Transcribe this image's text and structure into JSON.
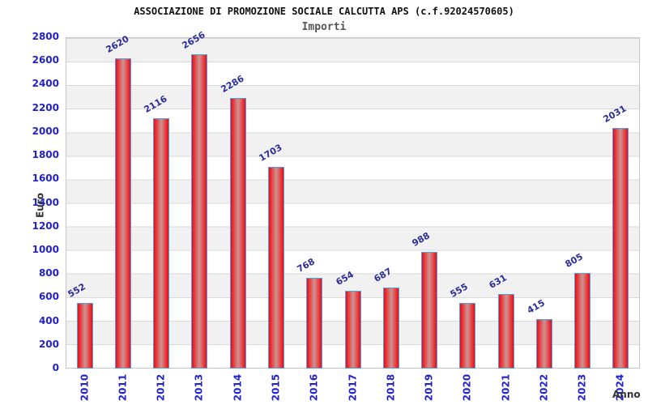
{
  "header": {
    "title": "ASSOCIAZIONE DI PROMOZIONE SOCIALE CALCUTTA APS (c.f.92024570605)",
    "subtitle": "Importi"
  },
  "chart_data": {
    "type": "bar",
    "title": "ASSOCIAZIONE DI PROMOZIONE SOCIALE CALCUTTA APS (c.f.92024570605)",
    "subtitle": "Importi",
    "xlabel": "Anno",
    "ylabel": "Euro",
    "categories": [
      "2010",
      "2011",
      "2012",
      "2013",
      "2014",
      "2015",
      "2016",
      "2017",
      "2018",
      "2019",
      "2020",
      "2021",
      "2022",
      "2023",
      "2024"
    ],
    "values": [
      552,
      2620,
      2116,
      2656,
      2286,
      1703,
      768,
      654,
      687,
      988,
      555,
      631,
      415,
      805,
      2031
    ],
    "ylim": [
      0,
      2800
    ],
    "ytick_step": 200,
    "grid": "horizontal-bands",
    "legend": "none",
    "colors": {
      "bar_edge_red": "#df0f20",
      "bar_center": "#cd8d8d",
      "bar_border_blue": "#54a0dc",
      "tick_label_blue": "#2222cc",
      "value_label_navy": "#2d2d99",
      "band_gray": "#f1f1f1",
      "grid_line": "#d9d9d9",
      "axis_title_gray": "#333333",
      "title_black": "#111111",
      "subtitle_gray": "#555555"
    }
  }
}
